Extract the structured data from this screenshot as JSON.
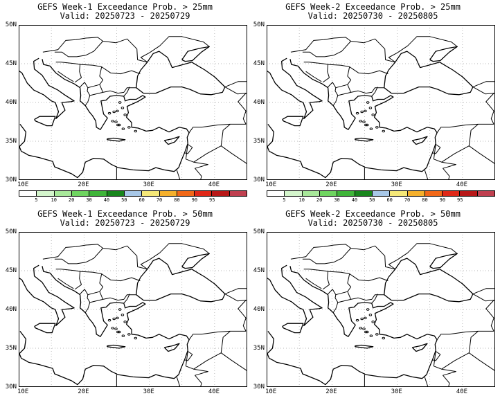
{
  "panels": [
    {
      "title": "GEFS Week-1 Exceedance Prob. > 25mm",
      "valid": "Valid: 20250723 - 20250729",
      "has_colorbar": true
    },
    {
      "title": "GEFS Week-2 Exceedance Prob. > 25mm",
      "valid": "Valid: 20250730 - 20250805",
      "has_colorbar": true
    },
    {
      "title": "GEFS Week-1 Exceedance Prob. > 50mm",
      "valid": "Valid: 20250723 - 20250729",
      "has_colorbar": false
    },
    {
      "title": "GEFS Week-2 Exceedance Prob. > 50mm",
      "valid": "Valid: 20250730 - 20250805",
      "has_colorbar": false
    }
  ],
  "lat_labels": [
    "50N",
    "45N",
    "40N",
    "35N",
    "30N"
  ],
  "lon_labels": [
    "10E",
    "20E",
    "30E",
    "40E"
  ],
  "colorbar": {
    "ticks": [
      "5",
      "10",
      "20",
      "30",
      "40",
      "50",
      "60",
      "70",
      "80",
      "90",
      "95"
    ],
    "colors": [
      "#ffffff",
      "#d4f5cc",
      "#a8e89a",
      "#6fd560",
      "#3fb539",
      "#18861c",
      "#a8c8e8",
      "#f5e878",
      "#f5b02c",
      "#f26818",
      "#e02818",
      "#b81818",
      "#c04050"
    ]
  }
}
